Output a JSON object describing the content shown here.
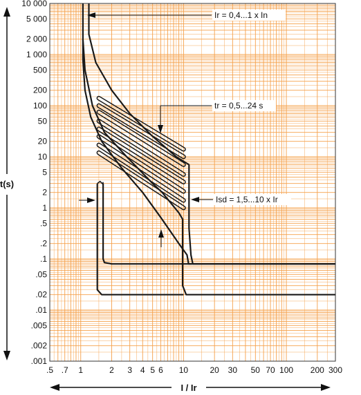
{
  "chart_data": {
    "type": "line",
    "title": "",
    "xlabel": "I / Ir",
    "ylabel": "t(s)",
    "xscale": "log",
    "yscale": "log",
    "xlim": [
      0.5,
      300
    ],
    "ylim": [
      0.001,
      10000
    ],
    "grid": true,
    "grid_color": "#f5a04a",
    "curve_color": "#1a1a1a",
    "x_ticks": [
      {
        "v": 0.5,
        "label": ".5"
      },
      {
        "v": 0.7,
        "label": ".7"
      },
      {
        "v": 1,
        "label": "1"
      },
      {
        "v": 2,
        "label": "2"
      },
      {
        "v": 3,
        "label": "3"
      },
      {
        "v": 4,
        "label": "4"
      },
      {
        "v": 5,
        "label": "5"
      },
      {
        "v": 6,
        "label": "6"
      },
      {
        "v": 10,
        "label": "10"
      },
      {
        "v": 20,
        "label": "20"
      },
      {
        "v": 30,
        "label": "30"
      },
      {
        "v": 50,
        "label": "50"
      },
      {
        "v": 70,
        "label": "70"
      },
      {
        "v": 100,
        "label": "100"
      },
      {
        "v": 200,
        "label": "200"
      },
      {
        "v": 300,
        "label": "300"
      }
    ],
    "y_ticks": [
      {
        "v": 10000,
        "label": "10 000"
      },
      {
        "v": 5000,
        "label": "5 000"
      },
      {
        "v": 2000,
        "label": "2 000"
      },
      {
        "v": 1000,
        "label": "1 000"
      },
      {
        "v": 500,
        "label": "500"
      },
      {
        "v": 200,
        "label": "200"
      },
      {
        "v": 100,
        "label": "100"
      },
      {
        "v": 50,
        "label": "50"
      },
      {
        "v": 20,
        "label": "20"
      },
      {
        "v": 10,
        "label": "10"
      },
      {
        "v": 5,
        "label": "5"
      },
      {
        "v": 2,
        "label": "2"
      },
      {
        "v": 1,
        "label": "1"
      },
      {
        "v": 0.5,
        "label": ".5"
      },
      {
        "v": 0.2,
        "label": ".2"
      },
      {
        "v": 0.1,
        "label": ".1"
      },
      {
        "v": 0.05,
        "label": ".05"
      },
      {
        "v": 0.02,
        "label": ".02"
      },
      {
        "v": 0.01,
        "label": ".01"
      },
      {
        "v": 0.005,
        "label": ".005"
      },
      {
        "v": 0.002,
        "label": ".002"
      },
      {
        "v": 0.001,
        "label": ".001"
      }
    ],
    "series": [
      {
        "points": [
          [
            1.05,
            10000
          ],
          [
            1.05,
            800
          ],
          [
            1.1,
            200
          ],
          [
            1.25,
            60
          ],
          [
            1.6,
            20
          ],
          [
            2.5,
            6
          ],
          [
            4,
            2
          ],
          [
            6,
            0.65
          ],
          [
            9,
            0.2
          ],
          [
            10.8,
            0.12
          ],
          [
            11.2,
            0.08
          ],
          [
            300,
            0.08
          ]
        ]
      },
      {
        "points": [
          [
            1.2,
            10000
          ],
          [
            1.2,
            2500
          ],
          [
            1.4,
            700
          ],
          [
            2,
            200
          ],
          [
            3,
            70
          ],
          [
            5,
            25
          ],
          [
            8.5,
            10
          ],
          [
            11.3,
            7
          ],
          [
            11.3,
            0.4
          ],
          [
            11.8,
            0.12
          ],
          [
            12.3,
            0.08
          ],
          [
            300,
            0.08
          ]
        ]
      },
      {
        "points": [
          [
            1.05,
            2000
          ],
          [
            1.1,
            500
          ],
          [
            1.3,
            100
          ],
          [
            1.7,
            30
          ],
          [
            2.8,
            10
          ],
          [
            5,
            3
          ],
          [
            6.2,
            2
          ],
          [
            9,
            0.8
          ],
          [
            9.8,
            0.6
          ],
          [
            9.8,
            0.03
          ],
          [
            10.6,
            0.02
          ],
          [
            300,
            0.02
          ]
        ]
      },
      {
        "points": [
          [
            1.65,
            3
          ],
          [
            1.65,
            0.1
          ],
          [
            1.7,
            0.085
          ],
          [
            2,
            0.08
          ],
          [
            12,
            0.08
          ]
        ]
      },
      {
        "points": [
          [
            1.45,
            3
          ],
          [
            1.45,
            0.025
          ],
          [
            1.6,
            0.02
          ],
          [
            10,
            0.02
          ]
        ]
      }
    ],
    "bands": [
      {
        "from": [
          1.5,
          140
        ],
        "to": [
          10,
          14
        ]
      },
      {
        "from": [
          1.5,
          100
        ],
        "to": [
          10,
          10
        ]
      },
      {
        "from": [
          1.5,
          75
        ],
        "to": [
          10,
          7
        ]
      },
      {
        "from": [
          1.5,
          50
        ],
        "to": [
          10,
          4.5
        ]
      },
      {
        "from": [
          1.5,
          35
        ],
        "to": [
          10,
          3.2
        ]
      },
      {
        "from": [
          1.5,
          25
        ],
        "to": [
          10,
          2.1
        ]
      },
      {
        "from": [
          1.5,
          17
        ],
        "to": [
          10,
          1.4
        ]
      },
      {
        "from": [
          1.5,
          12
        ],
        "to": [
          10,
          1
        ]
      }
    ],
    "annotations": [
      {
        "text": "Ir = 0,4...1 x In"
      },
      {
        "text": "tr = 0,5...24 s"
      },
      {
        "text": "Isd = 1,5...10 x Ir"
      }
    ]
  }
}
